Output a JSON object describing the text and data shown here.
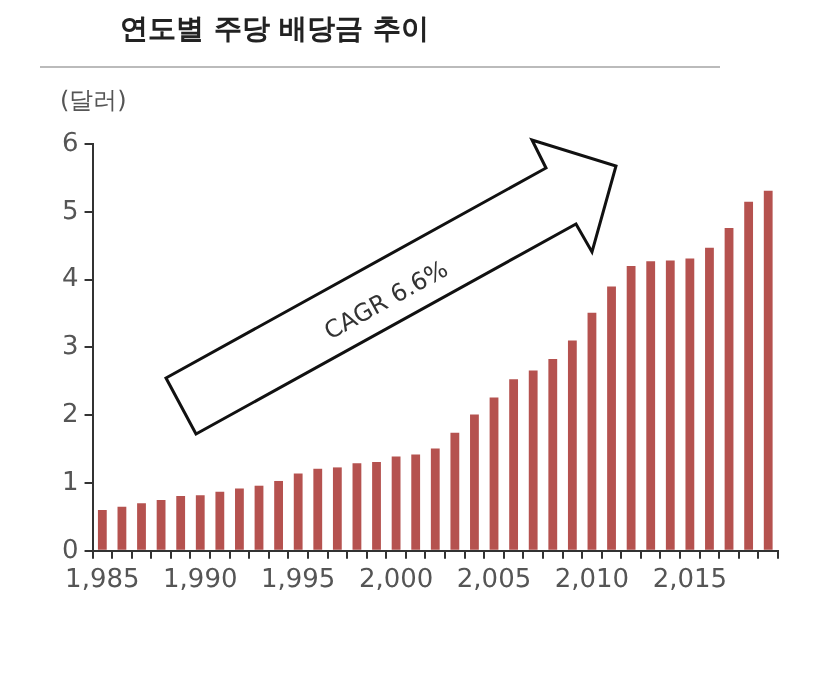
{
  "chart_data": {
    "type": "bar",
    "title": "연도별 주당 배당금 추이",
    "ylabel": "(달러)",
    "categories": [
      "1,985",
      null,
      null,
      null,
      null,
      "1,990",
      null,
      null,
      null,
      null,
      "1,995",
      null,
      null,
      null,
      null,
      "2,000",
      null,
      null,
      null,
      null,
      "2,005",
      null,
      null,
      null,
      null,
      "2,010",
      null,
      null,
      null,
      null,
      "2,015",
      null,
      null,
      null,
      null
    ],
    "values": [
      0.6,
      0.65,
      0.7,
      0.75,
      0.81,
      0.82,
      0.87,
      0.92,
      0.96,
      1.03,
      1.14,
      1.21,
      1.23,
      1.29,
      1.31,
      1.39,
      1.42,
      1.51,
      1.74,
      2.01,
      2.26,
      2.53,
      2.66,
      2.83,
      3.1,
      3.51,
      3.9,
      4.2,
      4.27,
      4.28,
      4.31,
      4.47,
      4.76,
      5.15,
      5.31
    ],
    "color": "#b5524f",
    "ylim": [
      0,
      6
    ],
    "yticks": [
      0,
      1,
      2,
      3,
      4,
      5,
      6
    ],
    "grid": false,
    "legend": false,
    "annotations": [
      "CAGR 6.6%"
    ]
  }
}
